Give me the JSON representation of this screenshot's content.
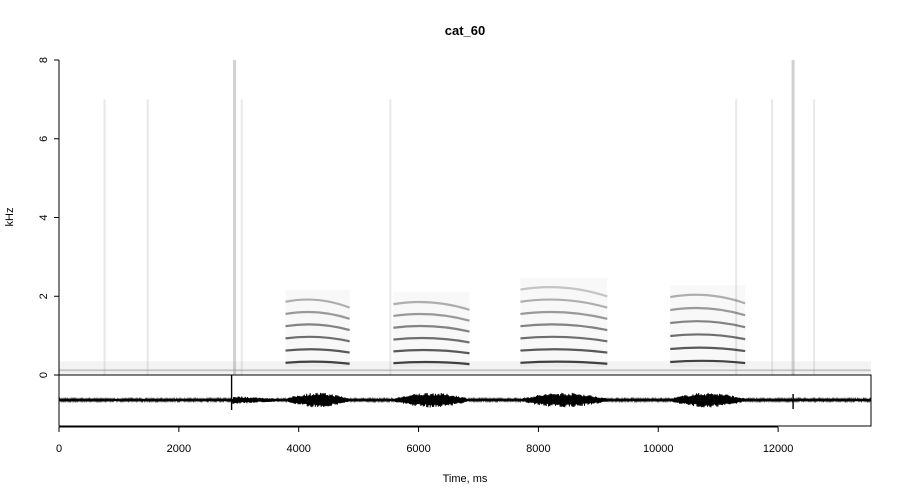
{
  "chart_data": {
    "type": "spectrogram",
    "title": "cat_60",
    "xlabel": "Time, ms",
    "ylabel": "kHz",
    "xlim": [
      0,
      13550
    ],
    "ylim": [
      0,
      8
    ],
    "x_ticks": [
      0,
      2000,
      4000,
      6000,
      8000,
      10000,
      12000
    ],
    "y_ticks": [
      0,
      2,
      4,
      6,
      8
    ],
    "grid": false,
    "colors": {
      "ink": "#000000",
      "background": "#ffffff",
      "noise": "#9a9a9a"
    },
    "harmonic_calls": [
      {
        "start_ms": 3780,
        "end_ms": 4850,
        "f0_khz": 0.31,
        "harmonics": 6
      },
      {
        "start_ms": 5580,
        "end_ms": 6850,
        "f0_khz": 0.3,
        "harmonics": 6
      },
      {
        "start_ms": 7700,
        "end_ms": 9150,
        "f0_khz": 0.31,
        "harmonics": 7
      },
      {
        "start_ms": 10200,
        "end_ms": 11450,
        "f0_khz": 0.33,
        "harmonics": 6
      }
    ],
    "broadband_transients_ms": [
      760,
      1480,
      2930,
      3050,
      5530,
      11300,
      11900,
      12250,
      12600
    ],
    "waveform_spikes_ms": [
      2880,
      12250
    ]
  }
}
